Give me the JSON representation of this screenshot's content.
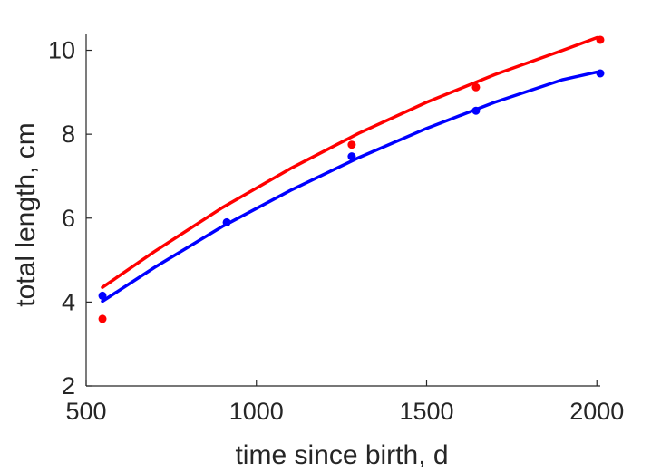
{
  "chart_data": {
    "type": "scatter",
    "title": "",
    "xlabel": "time since birth, d",
    "ylabel": "total length, cm",
    "xlim": [
      500,
      2010
    ],
    "ylim": [
      2,
      10.4
    ],
    "x_ticks": [
      500,
      1000,
      1500,
      2000
    ],
    "y_ticks": [
      2,
      4,
      6,
      8,
      10
    ],
    "x_tick_labels": [
      "500",
      "1000",
      "1500",
      "2000"
    ],
    "y_tick_labels": [
      "2",
      "4",
      "6",
      "8",
      "10"
    ],
    "grid": false,
    "legend": "none",
    "series": [
      {
        "color": "#ff0000",
        "points": [
          {
            "x": 548,
            "y": 3.6
          },
          {
            "x": 1280,
            "y": 7.75
          },
          {
            "x": 1645,
            "y": 9.12
          },
          {
            "x": 2010,
            "y": 10.25
          }
        ],
        "fit": [
          {
            "x": 548,
            "y": 4.35
          },
          {
            "x": 700,
            "y": 5.2
          },
          {
            "x": 900,
            "y": 6.25
          },
          {
            "x": 1100,
            "y": 7.18
          },
          {
            "x": 1300,
            "y": 8.02
          },
          {
            "x": 1500,
            "y": 8.76
          },
          {
            "x": 1700,
            "y": 9.42
          },
          {
            "x": 1900,
            "y": 10.0
          },
          {
            "x": 2000,
            "y": 10.3
          }
        ]
      },
      {
        "color": "#0000ff",
        "points": [
          {
            "x": 548,
            "y": 4.15
          },
          {
            "x": 913,
            "y": 5.9
          },
          {
            "x": 1280,
            "y": 7.47
          },
          {
            "x": 1645,
            "y": 8.56
          },
          {
            "x": 2010,
            "y": 9.45
          }
        ],
        "fit": [
          {
            "x": 548,
            "y": 4.02
          },
          {
            "x": 700,
            "y": 4.82
          },
          {
            "x": 900,
            "y": 5.8
          },
          {
            "x": 1100,
            "y": 6.66
          },
          {
            "x": 1300,
            "y": 7.44
          },
          {
            "x": 1500,
            "y": 8.14
          },
          {
            "x": 1700,
            "y": 8.76
          },
          {
            "x": 1900,
            "y": 9.3
          },
          {
            "x": 2000,
            "y": 9.48
          }
        ]
      }
    ]
  }
}
